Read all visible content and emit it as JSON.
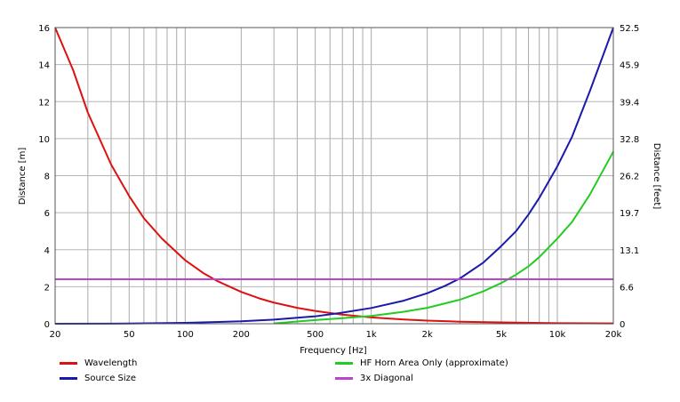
{
  "chart_data": {
    "type": "line",
    "xlabel": "Frequency  [Hz]",
    "ylabel_left": "Distance  [m]",
    "ylabel_right": "Distance [feet]",
    "x_scale": "log",
    "xlim": [
      20,
      20000
    ],
    "ylim_left": [
      0,
      16
    ],
    "ylim_right": [
      0,
      52.5
    ],
    "x_ticks": [
      {
        "value": 20,
        "label": "20"
      },
      {
        "value": 50,
        "label": "50"
      },
      {
        "value": 100,
        "label": "100"
      },
      {
        "value": 200,
        "label": "200"
      },
      {
        "value": 500,
        "label": "500"
      },
      {
        "value": 1000,
        "label": "1k"
      },
      {
        "value": 2000,
        "label": "2k"
      },
      {
        "value": 5000,
        "label": "5k"
      },
      {
        "value": 10000,
        "label": "10k"
      },
      {
        "value": 20000,
        "label": "20k"
      }
    ],
    "y_ticks_left": [
      "0",
      "2",
      "4",
      "6",
      "8",
      "10",
      "12",
      "14",
      "16"
    ],
    "y_ticks_right": [
      "0",
      "6.6",
      "13.1",
      "19.7",
      "26.2",
      "32.8",
      "39.4",
      "45.9",
      "52.5"
    ],
    "grid": true,
    "legend_position": "bottom",
    "series": [
      {
        "name": "Wavelength",
        "color": "#dd1111",
        "points": [
          [
            20,
            16.0
          ],
          [
            25,
            13.7
          ],
          [
            30,
            11.4
          ],
          [
            40,
            8.6
          ],
          [
            50,
            6.9
          ],
          [
            60,
            5.7
          ],
          [
            75,
            4.6
          ],
          [
            100,
            3.43
          ],
          [
            125,
            2.74
          ],
          [
            150,
            2.29
          ],
          [
            200,
            1.72
          ],
          [
            250,
            1.37
          ],
          [
            300,
            1.14
          ],
          [
            400,
            0.86
          ],
          [
            500,
            0.69
          ],
          [
            700,
            0.49
          ],
          [
            1000,
            0.34
          ],
          [
            1500,
            0.23
          ],
          [
            2000,
            0.17
          ],
          [
            3000,
            0.11
          ],
          [
            5000,
            0.07
          ],
          [
            10000,
            0.03
          ],
          [
            20000,
            0.02
          ]
        ]
      },
      {
        "name": "Source Size",
        "color": "#1a1aaa",
        "points": [
          [
            20,
            0.0
          ],
          [
            50,
            0.01
          ],
          [
            100,
            0.05
          ],
          [
            200,
            0.13
          ],
          [
            300,
            0.22
          ],
          [
            500,
            0.4
          ],
          [
            700,
            0.6
          ],
          [
            1000,
            0.85
          ],
          [
            1500,
            1.25
          ],
          [
            2000,
            1.65
          ],
          [
            2500,
            2.05
          ],
          [
            3000,
            2.45
          ],
          [
            4000,
            3.3
          ],
          [
            5000,
            4.2
          ],
          [
            6000,
            5.0
          ],
          [
            7000,
            5.9
          ],
          [
            8000,
            6.8
          ],
          [
            10000,
            8.5
          ],
          [
            12000,
            10.1
          ],
          [
            15000,
            12.6
          ],
          [
            20000,
            16.0
          ]
        ]
      },
      {
        "name": "HF Horn Area Only (approximate)",
        "color": "#22cc22",
        "points": [
          [
            300,
            0.02
          ],
          [
            500,
            0.2
          ],
          [
            700,
            0.3
          ],
          [
            1000,
            0.42
          ],
          [
            1500,
            0.65
          ],
          [
            2000,
            0.86
          ],
          [
            3000,
            1.3
          ],
          [
            4000,
            1.75
          ],
          [
            5000,
            2.2
          ],
          [
            6000,
            2.65
          ],
          [
            7000,
            3.1
          ],
          [
            8000,
            3.6
          ],
          [
            10000,
            4.6
          ],
          [
            12000,
            5.5
          ],
          [
            15000,
            7.0
          ],
          [
            20000,
            9.3
          ]
        ]
      },
      {
        "name": "3x Diagonal",
        "color": "#bb44cc",
        "points": [
          [
            20,
            2.4
          ],
          [
            20000,
            2.4
          ]
        ]
      }
    ]
  },
  "legend": [
    {
      "label": "Wavelength",
      "color": "#dd1111"
    },
    {
      "label": "Source Size",
      "color": "#1a1aaa"
    },
    {
      "label": "HF Horn Area Only (approximate)",
      "color": "#22cc22"
    },
    {
      "label": "3x Diagonal",
      "color": "#bb44cc"
    }
  ]
}
